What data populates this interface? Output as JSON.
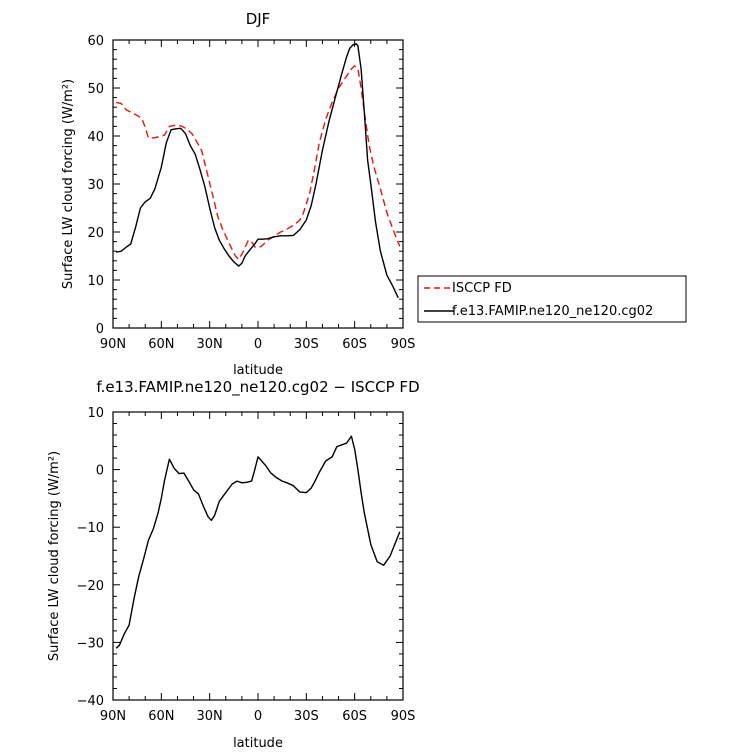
{
  "chart_data": [
    {
      "type": "line",
      "title": "DJF",
      "xlabel": "latitude",
      "ylabel": "Surface LW cloud forcing (W/m²)",
      "xlim": [
        -90,
        90
      ],
      "ylim": [
        0,
        60
      ],
      "x_ticks": [
        -90,
        -60,
        -30,
        0,
        30,
        60,
        90
      ],
      "x_tick_labels": [
        "90N",
        "60N",
        "30N",
        "0",
        "30S",
        "60S",
        "90S"
      ],
      "y_ticks": [
        0,
        10,
        20,
        30,
        40,
        50,
        60
      ],
      "y_tick_labels": [
        "0",
        "10",
        "20",
        "30",
        "40",
        "50",
        "60"
      ],
      "legend_position": "right",
      "series": [
        {
          "name": "ISCCP FD",
          "color": "#e8150f",
          "dash": "dashed",
          "x": [
            -88,
            -85,
            -82,
            -78,
            -75,
            -72,
            -70,
            -68,
            -65,
            -62,
            -58,
            -55,
            -52,
            -50,
            -47,
            -44,
            -41,
            -38,
            -35,
            -32,
            -28,
            -25,
            -22,
            -18,
            -14,
            -12,
            -10,
            -8,
            -6,
            -4,
            -2,
            0,
            2,
            4,
            6,
            10,
            14,
            18,
            22,
            26,
            28,
            32,
            35,
            38,
            42,
            46,
            50,
            55,
            58,
            60,
            62,
            64,
            66,
            69,
            72,
            76,
            80,
            85,
            88
          ],
          "y": [
            47.0,
            46.8,
            45.5,
            44.8,
            44.3,
            43.6,
            41.8,
            39.6,
            39.6,
            39.8,
            40.2,
            42.0,
            42.2,
            42.3,
            42.0,
            41.4,
            40.5,
            38.8,
            37.0,
            33.0,
            27.5,
            23.3,
            20.6,
            17.7,
            15.0,
            14.3,
            15.4,
            16.8,
            18.3,
            18.0,
            16.9,
            16.7,
            17.0,
            17.6,
            18.3,
            19.1,
            20.0,
            20.6,
            21.4,
            22.5,
            23.8,
            28.0,
            33.0,
            38.5,
            43.5,
            47.0,
            50.0,
            52.5,
            54.0,
            54.6,
            54.0,
            50.0,
            45.0,
            38.0,
            33.5,
            29.0,
            24.0,
            19.5,
            17.0
          ]
        },
        {
          "name": "f.e13.FAMIP.ne120_ne120.cg02",
          "color": "#000000",
          "dash": "solid",
          "x": [
            -88,
            -85,
            -82,
            -79,
            -76,
            -73,
            -70,
            -67,
            -64,
            -60,
            -57,
            -54,
            -51,
            -48,
            -45,
            -42,
            -39,
            -36,
            -33,
            -30,
            -27,
            -24,
            -21,
            -18,
            -15,
            -12,
            -10,
            -8,
            -5,
            -2,
            0,
            3,
            6,
            10,
            14,
            18,
            22,
            26,
            30,
            33,
            36,
            40,
            44,
            48,
            52,
            55,
            57,
            59,
            61,
            62,
            64,
            66,
            68,
            70,
            73,
            76,
            80,
            84,
            87
          ],
          "y": [
            15.8,
            16.0,
            16.8,
            17.5,
            21.0,
            25.0,
            26.3,
            27.0,
            29.0,
            33.5,
            38.5,
            41.3,
            41.5,
            41.6,
            40.5,
            38.0,
            36.2,
            33.0,
            29.5,
            25.0,
            21.0,
            18.3,
            16.5,
            15.0,
            13.8,
            12.9,
            13.5,
            15.0,
            16.3,
            17.5,
            18.5,
            18.5,
            18.6,
            19.0,
            19.2,
            19.2,
            19.3,
            20.5,
            22.5,
            25.5,
            30.0,
            37.0,
            43.0,
            48.0,
            53.0,
            56.5,
            58.3,
            59.0,
            59.2,
            58.8,
            54.0,
            45.0,
            35.0,
            30.0,
            22.0,
            16.0,
            11.0,
            8.5,
            6.3
          ]
        }
      ]
    },
    {
      "type": "line",
      "title": "f.e13.FAMIP.ne120_ne120.cg02 − ISCCP FD",
      "xlabel": "latitude",
      "ylabel": "Surface LW cloud forcing (W/m²)",
      "xlim": [
        -90,
        90
      ],
      "ylim": [
        -40,
        10
      ],
      "x_ticks": [
        -90,
        -60,
        -30,
        0,
        30,
        60,
        90
      ],
      "x_tick_labels": [
        "90N",
        "60N",
        "30N",
        "0",
        "30S",
        "60S",
        "90S"
      ],
      "y_ticks": [
        -40,
        -30,
        -20,
        -10,
        0,
        10
      ],
      "y_tick_labels": [
        "−40",
        "−30",
        "−20",
        "−10",
        "0",
        "10"
      ],
      "series": [
        {
          "name": "",
          "color": "#000000",
          "dash": "solid",
          "x": [
            -88,
            -86,
            -83,
            -80,
            -77,
            -74,
            -71,
            -68,
            -65,
            -62,
            -60,
            -58,
            -55,
            -52,
            -49,
            -46,
            -43,
            -40,
            -37,
            -34,
            -31,
            -29,
            -27,
            -24,
            -20,
            -16,
            -13,
            -10,
            -7,
            -4,
            -2,
            0,
            2,
            5,
            8,
            11,
            15,
            18,
            22,
            26,
            30,
            33,
            35,
            38,
            42,
            46,
            49,
            52,
            55,
            58,
            60,
            62,
            64,
            66,
            70,
            74,
            78,
            82,
            88
          ],
          "y": [
            -31.0,
            -30.5,
            -28.5,
            -27.0,
            -22.5,
            -18.5,
            -15.5,
            -12.3,
            -10.3,
            -7.5,
            -5.0,
            -1.8,
            1.8,
            0.2,
            -0.7,
            -0.6,
            -2.0,
            -3.5,
            -4.2,
            -6.3,
            -8.2,
            -8.8,
            -8.0,
            -5.5,
            -4.0,
            -2.5,
            -2.0,
            -2.3,
            -2.2,
            -2.0,
            0.0,
            2.2,
            1.6,
            0.6,
            -0.6,
            -1.3,
            -2.0,
            -2.3,
            -2.8,
            -3.9,
            -4.0,
            -3.2,
            -2.2,
            -0.5,
            1.5,
            2.2,
            4.0,
            4.3,
            4.6,
            5.8,
            3.5,
            0.0,
            -4.0,
            -7.5,
            -13.0,
            -16.0,
            -16.6,
            -15.0,
            -10.8
          ]
        }
      ]
    }
  ]
}
